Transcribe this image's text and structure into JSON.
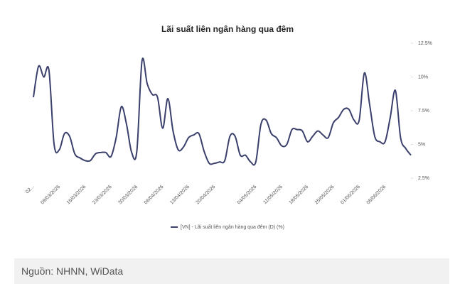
{
  "chart_data": {
    "type": "line",
    "title": "Lãi suất liên ngân hàng qua đêm",
    "categories": [
      "02...",
      null,
      null,
      null,
      null,
      "09/03/2026",
      null,
      null,
      null,
      null,
      "16/03/2026",
      null,
      null,
      null,
      null,
      "23/03/2026",
      null,
      null,
      null,
      null,
      "30/03/2026",
      null,
      null,
      null,
      null,
      "06/04/2026",
      null,
      null,
      null,
      null,
      "13/04/2026",
      null,
      null,
      null,
      null,
      "20/04/2026",
      null,
      null,
      null,
      null,
      null,
      null,
      null,
      "04/05/2026",
      null,
      null,
      null,
      null,
      "11/05/2026",
      null,
      null,
      null,
      null,
      "18/05/2026",
      null,
      null,
      null,
      null,
      "25/05/2026",
      null,
      null,
      null,
      null,
      "01/06/2026",
      null,
      null,
      null,
      null,
      "08/06/2026",
      null,
      null,
      null,
      null,
      null
    ],
    "series": [
      {
        "name": "[VN] - Lãi suất liên ngân hàng qua đêm (D) (%)",
        "color": "#3a3f6b",
        "values": [
          8.5,
          10.8,
          10.0,
          10.5,
          5.0,
          4.6,
          5.8,
          5.6,
          4.3,
          4.0,
          3.8,
          3.8,
          4.3,
          4.4,
          4.4,
          4.1,
          5.5,
          7.8,
          6.5,
          4.4,
          4.5,
          11.2,
          9.5,
          8.7,
          8.5,
          6.2,
          8.4,
          6.0,
          4.6,
          4.8,
          5.5,
          5.7,
          5.8,
          4.5,
          3.6,
          3.6,
          3.7,
          3.8,
          5.6,
          5.6,
          4.2,
          4.2,
          3.7,
          3.7,
          6.5,
          6.8,
          5.8,
          5.5,
          4.9,
          5.0,
          6.1,
          6.1,
          6.0,
          5.2,
          5.6,
          6.0,
          5.7,
          5.5,
          6.6,
          7.0,
          7.6,
          7.6,
          6.8,
          6.8,
          10.3,
          8.0,
          5.6,
          5.2,
          5.2,
          7.0,
          9.0,
          5.5,
          4.7,
          4.2
        ]
      }
    ],
    "ylim": [
      2.5,
      12.5
    ],
    "yticks": [
      {
        "value": 2.5,
        "label": "2.5%"
      },
      {
        "value": 5,
        "label": "5%"
      },
      {
        "value": 7.5,
        "label": "7.5%"
      },
      {
        "value": 10,
        "label": "10%"
      },
      {
        "value": 12.5,
        "label": "12.5%"
      }
    ],
    "grid": false,
    "legend": "bottom"
  },
  "footer": {
    "source": "Nguồn: NHNN, WiData"
  }
}
